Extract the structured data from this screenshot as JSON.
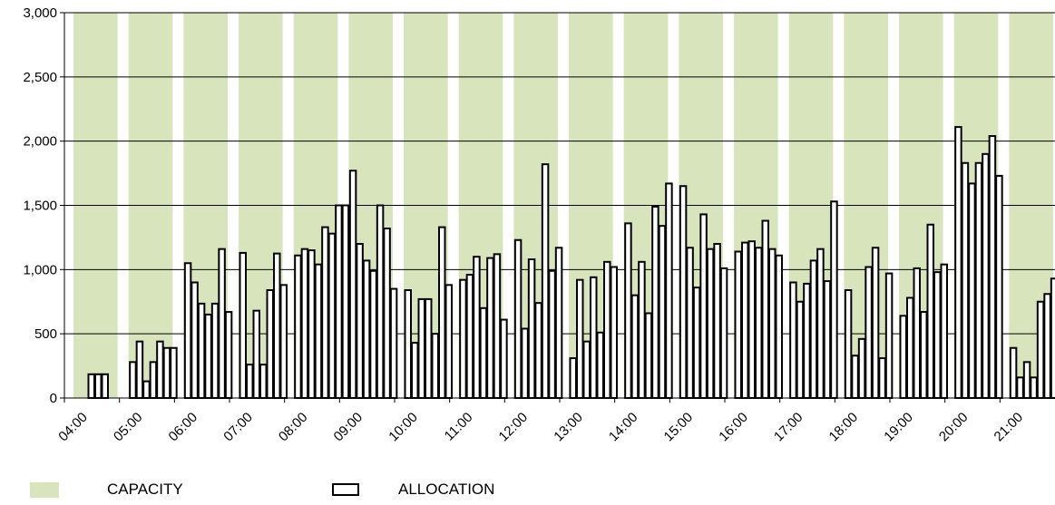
{
  "colors": {
    "capacity": "#d8e4bc",
    "allocation_fill": "#ffffff",
    "allocation_stroke": "#000000",
    "axis": "#000000",
    "grid": "#000000"
  },
  "legend": {
    "capacity_label": "CAPACITY",
    "allocation_label": "ALLOCATION"
  },
  "chart_data": {
    "type": "bar",
    "legend_position": "bottom",
    "ylim": [
      0,
      3000
    ],
    "yticks": [
      0,
      500,
      1000,
      1500,
      2000,
      2500,
      3000
    ],
    "ytick_labels": [
      "0",
      "500",
      "1,000",
      "1,500",
      "2,000",
      "2,500",
      "3,000"
    ],
    "grid": "horizontal",
    "categories": [
      "04:00",
      "05:00",
      "06:00",
      "07:00",
      "08:00",
      "09:00",
      "10:00",
      "11:00",
      "12:00",
      "13:00",
      "14:00",
      "15:00",
      "16:00",
      "17:00",
      "18:00",
      "19:00",
      "20:00",
      "21:00"
    ],
    "series": [
      {
        "name": "CAPACITY",
        "kind": "background-band",
        "values": [
          3000,
          3000,
          3000,
          3000,
          3000,
          3000,
          3000,
          3000,
          3000,
          3000,
          3000,
          3000,
          3000,
          3000,
          3000,
          3000,
          3000,
          3000
        ]
      },
      {
        "name": "ALLOCATION",
        "kind": "bars-per-5-min",
        "values": [
          [
            null,
            null,
            185,
            185,
            185,
            null,
            null,
            null,
            null,
            null,
            null,
            null
          ],
          [
            280,
            440,
            130,
            280,
            440,
            390,
            390,
            null,
            null,
            null,
            null,
            null
          ],
          [
            1050,
            900,
            735,
            650,
            735,
            1160,
            670,
            null,
            null,
            null,
            null,
            null
          ],
          [
            1130,
            260,
            680,
            260,
            840,
            1125,
            880,
            null,
            null,
            null,
            null,
            null
          ],
          [
            1110,
            1160,
            1150,
            1040,
            1330,
            1280,
            1500,
            1500,
            null,
            null,
            null,
            null
          ],
          [
            1770,
            1200,
            1070,
            990,
            1500,
            1320,
            850,
            null,
            null,
            null,
            null,
            null
          ],
          [
            840,
            430,
            770,
            770,
            500,
            1330,
            880,
            null,
            null,
            null,
            null,
            null
          ],
          [
            920,
            960,
            1100,
            700,
            1090,
            1120,
            610,
            null,
            null,
            null,
            null,
            null
          ],
          [
            1230,
            540,
            1080,
            740,
            1820,
            990,
            1170,
            null,
            null,
            null,
            null,
            null
          ],
          [
            310,
            920,
            440,
            940,
            510,
            1060,
            1020,
            null,
            null,
            null,
            null,
            null
          ],
          [
            1360,
            800,
            1060,
            660,
            1490,
            1340,
            1670,
            null,
            null,
            null,
            null,
            null
          ],
          [
            1650,
            1170,
            860,
            1430,
            1160,
            1200,
            1010,
            null,
            null,
            null,
            null,
            null
          ],
          [
            1140,
            1210,
            1220,
            1170,
            1380,
            1160,
            1110,
            null,
            null,
            null,
            null,
            null
          ],
          [
            900,
            750,
            890,
            1070,
            1160,
            910,
            1530,
            null,
            null,
            null,
            null,
            null
          ],
          [
            840,
            330,
            460,
            1020,
            1170,
            310,
            970,
            null,
            null,
            null,
            null,
            null
          ],
          [
            640,
            780,
            1010,
            670,
            1350,
            980,
            1040,
            null,
            null,
            null,
            null,
            null
          ],
          [
            2110,
            1830,
            1670,
            1830,
            1900,
            2040,
            1730,
            null,
            null,
            null,
            null,
            null
          ],
          [
            390,
            160,
            280,
            160,
            750,
            810,
            930,
            null,
            null,
            null,
            null,
            null
          ]
        ]
      }
    ]
  }
}
